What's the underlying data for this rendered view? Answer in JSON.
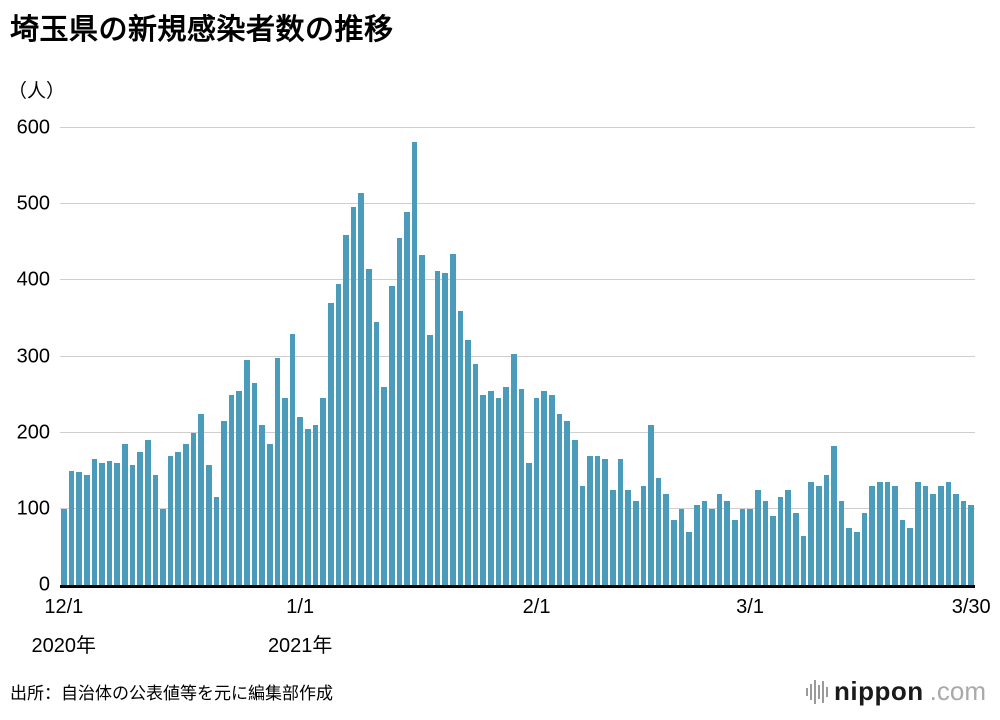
{
  "title": "埼玉県の新規感染者数の推移",
  "unit_label": "（人）",
  "source": "出所：自治体の公表値等を元に編集部作成",
  "logo": {
    "name": "nippon",
    "tld": ".com",
    "icon": "soundwave-bars-icon"
  },
  "chart_data": {
    "type": "bar",
    "title": "埼玉県の新規感染者数の推移",
    "ylabel": "（人）",
    "ylim": [
      0,
      600
    ],
    "yticks": [
      0,
      100,
      200,
      300,
      400,
      500,
      600
    ],
    "grid": true,
    "bar_color": "#4a9cba",
    "x_ticks": [
      {
        "label": "12/1",
        "index": 0
      },
      {
        "label": "1/1",
        "index": 31
      },
      {
        "label": "2/1",
        "index": 62
      },
      {
        "label": "3/1",
        "index": 90
      },
      {
        "label": "3/30",
        "index": 119
      }
    ],
    "year_labels": [
      {
        "label": "2020年",
        "index": 0
      },
      {
        "label": "2021年",
        "index": 31
      }
    ],
    "categories": [
      "12/1",
      "12/2",
      "12/3",
      "12/4",
      "12/5",
      "12/6",
      "12/7",
      "12/8",
      "12/9",
      "12/10",
      "12/11",
      "12/12",
      "12/13",
      "12/14",
      "12/15",
      "12/16",
      "12/17",
      "12/18",
      "12/19",
      "12/20",
      "12/21",
      "12/22",
      "12/23",
      "12/24",
      "12/25",
      "12/26",
      "12/27",
      "12/28",
      "12/29",
      "12/30",
      "12/31",
      "1/1",
      "1/2",
      "1/3",
      "1/4",
      "1/5",
      "1/6",
      "1/7",
      "1/8",
      "1/9",
      "1/10",
      "1/11",
      "1/12",
      "1/13",
      "1/14",
      "1/15",
      "1/16",
      "1/17",
      "1/18",
      "1/19",
      "1/20",
      "1/21",
      "1/22",
      "1/23",
      "1/24",
      "1/25",
      "1/26",
      "1/27",
      "1/28",
      "1/29",
      "1/30",
      "1/31",
      "2/1",
      "2/2",
      "2/3",
      "2/4",
      "2/5",
      "2/6",
      "2/7",
      "2/8",
      "2/9",
      "2/10",
      "2/11",
      "2/12",
      "2/13",
      "2/14",
      "2/15",
      "2/16",
      "2/17",
      "2/18",
      "2/19",
      "2/20",
      "2/21",
      "2/22",
      "2/23",
      "2/24",
      "2/25",
      "2/26",
      "2/27",
      "2/28",
      "3/1",
      "3/2",
      "3/3",
      "3/4",
      "3/5",
      "3/6",
      "3/7",
      "3/8",
      "3/9",
      "3/10",
      "3/11",
      "3/12",
      "3/13",
      "3/14",
      "3/15",
      "3/16",
      "3/17",
      "3/18",
      "3/19",
      "3/20",
      "3/21",
      "3/22",
      "3/23",
      "3/24",
      "3/25",
      "3/26",
      "3/27",
      "3/28",
      "3/29",
      "3/30"
    ],
    "values": [
      100,
      150,
      148,
      145,
      165,
      160,
      163,
      160,
      185,
      158,
      175,
      190,
      145,
      100,
      170,
      175,
      185,
      200,
      225,
      158,
      115,
      215,
      250,
      255,
      295,
      265,
      210,
      185,
      298,
      245,
      330,
      220,
      205,
      210,
      245,
      370,
      395,
      460,
      496,
      515,
      415,
      345,
      260,
      392,
      455,
      490,
      582,
      433,
      328,
      412,
      410,
      435,
      360,
      322,
      290,
      250,
      255,
      245,
      260,
      303,
      258,
      160,
      245,
      255,
      250,
      225,
      215,
      190,
      130,
      170,
      170,
      165,
      125,
      165,
      125,
      110,
      130,
      210,
      140,
      120,
      85,
      100,
      70,
      105,
      110,
      100,
      120,
      110,
      85,
      100,
      100,
      125,
      110,
      90,
      115,
      125,
      95,
      65,
      135,
      130,
      145,
      183,
      110,
      75,
      70,
      95,
      130,
      135,
      135,
      130,
      85,
      75,
      135,
      130,
      120,
      130,
      135,
      120,
      110,
      105
    ]
  }
}
